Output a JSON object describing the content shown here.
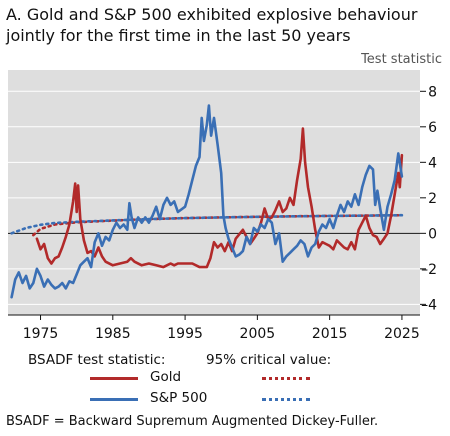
{
  "title": "A. Gold and S&P 500 exhibited explosive behaviour jointly for the first time in the last 50 years",
  "unit_label": "Test statistic",
  "legend": {
    "stat_header": "BSADF test statistic:",
    "crit_header": "95% critical value:",
    "gold_label": "Gold",
    "sp_label": "S&P 500"
  },
  "footnote": "BSADF = Backward Supremum Augmented Dickey-Fuller.",
  "colors": {
    "gold": "#b22a2a",
    "sp500": "#3a6fb5",
    "panel": "#dedede",
    "grid": "#ffffff"
  },
  "chart_data": {
    "type": "line",
    "x_range": [
      1970.5,
      2027.5
    ],
    "y_range": [
      -4.6,
      9.2
    ],
    "x_ticks": [
      1975,
      1985,
      1995,
      2005,
      2015,
      2025
    ],
    "y_ticks": [
      -4,
      -2,
      0,
      2,
      4,
      6,
      8
    ],
    "grid": true,
    "y_axis_side": "right",
    "series": [
      {
        "name": "Gold",
        "style": "solid",
        "points": [
          [
            1974.5,
            -0.3
          ],
          [
            1975,
            -0.9
          ],
          [
            1975.5,
            -0.6
          ],
          [
            1976,
            -1.4
          ],
          [
            1976.5,
            -1.7
          ],
          [
            1977,
            -1.4
          ],
          [
            1977.5,
            -1.3
          ],
          [
            1978,
            -0.8
          ],
          [
            1978.5,
            -0.2
          ],
          [
            1979,
            0.5
          ],
          [
            1979.5,
            1.8
          ],
          [
            1979.8,
            2.8
          ],
          [
            1980,
            1.2
          ],
          [
            1980.2,
            2.7
          ],
          [
            1980.5,
            0.8
          ],
          [
            1981,
            -0.4
          ],
          [
            1981.5,
            -1.1
          ],
          [
            1982,
            -1.0
          ],
          [
            1982.5,
            -1.3
          ],
          [
            1983,
            -0.8
          ],
          [
            1983.5,
            -1.3
          ],
          [
            1984,
            -1.6
          ],
          [
            1985,
            -1.8
          ],
          [
            1986,
            -1.7
          ],
          [
            1987,
            -1.6
          ],
          [
            1987.5,
            -1.4
          ],
          [
            1988,
            -1.6
          ],
          [
            1989,
            -1.8
          ],
          [
            1990,
            -1.7
          ],
          [
            1991,
            -1.8
          ],
          [
            1992,
            -1.9
          ],
          [
            1993,
            -1.7
          ],
          [
            1993.5,
            -1.8
          ],
          [
            1994,
            -1.7
          ],
          [
            1995,
            -1.7
          ],
          [
            1996,
            -1.7
          ],
          [
            1997,
            -1.9
          ],
          [
            1998,
            -1.9
          ],
          [
            1998.5,
            -1.4
          ],
          [
            1999,
            -0.5
          ],
          [
            1999.5,
            -0.8
          ],
          [
            2000,
            -0.6
          ],
          [
            2000.5,
            -1.0
          ],
          [
            2001,
            -0.5
          ],
          [
            2001.5,
            -1.0
          ],
          [
            2002,
            -0.3
          ],
          [
            2003,
            0.2
          ],
          [
            2003.5,
            -0.2
          ],
          [
            2004,
            -0.6
          ],
          [
            2004.5,
            -0.3
          ],
          [
            2005,
            0.0
          ],
          [
            2005.5,
            0.6
          ],
          [
            2006,
            1.4
          ],
          [
            2006.5,
            0.8
          ],
          [
            2007,
            0.9
          ],
          [
            2007.5,
            1.3
          ],
          [
            2008,
            1.8
          ],
          [
            2008.5,
            1.2
          ],
          [
            2009,
            1.4
          ],
          [
            2009.5,
            2.0
          ],
          [
            2010,
            1.6
          ],
          [
            2010.5,
            3.0
          ],
          [
            2011,
            4.2
          ],
          [
            2011.3,
            5.9
          ],
          [
            2011.6,
            4.0
          ],
          [
            2012,
            2.6
          ],
          [
            2012.5,
            1.5
          ],
          [
            2013,
            0.2
          ],
          [
            2013.5,
            -0.8
          ],
          [
            2014,
            -0.5
          ],
          [
            2014.5,
            -0.6
          ],
          [
            2015,
            -0.7
          ],
          [
            2015.5,
            -0.9
          ],
          [
            2016,
            -0.4
          ],
          [
            2016.5,
            -0.6
          ],
          [
            2017,
            -0.8
          ],
          [
            2017.5,
            -0.9
          ],
          [
            2018,
            -0.5
          ],
          [
            2018.5,
            -0.9
          ],
          [
            2019,
            0.2
          ],
          [
            2019.5,
            0.6
          ],
          [
            2020,
            1.0
          ],
          [
            2020.5,
            0.3
          ],
          [
            2021,
            -0.1
          ],
          [
            2021.5,
            -0.2
          ],
          [
            2022,
            -0.6
          ],
          [
            2022.5,
            -0.3
          ],
          [
            2023,
            0.0
          ],
          [
            2023.5,
            1.0
          ],
          [
            2024,
            2.2
          ],
          [
            2024.5,
            3.4
          ],
          [
            2024.7,
            2.6
          ],
          [
            2025,
            4.4
          ]
        ]
      },
      {
        "name": "S&P 500",
        "style": "solid",
        "points": [
          [
            1971,
            -3.6
          ],
          [
            1971.5,
            -2.6
          ],
          [
            1972,
            -2.2
          ],
          [
            1972.5,
            -2.8
          ],
          [
            1973,
            -2.4
          ],
          [
            1973.5,
            -3.1
          ],
          [
            1974,
            -2.8
          ],
          [
            1974.5,
            -2.0
          ],
          [
            1975,
            -2.4
          ],
          [
            1975.5,
            -3.0
          ],
          [
            1976,
            -2.6
          ],
          [
            1976.5,
            -2.9
          ],
          [
            1977,
            -3.1
          ],
          [
            1977.5,
            -3.0
          ],
          [
            1978,
            -2.8
          ],
          [
            1978.5,
            -3.1
          ],
          [
            1979,
            -2.7
          ],
          [
            1979.5,
            -2.8
          ],
          [
            1980,
            -2.3
          ],
          [
            1980.5,
            -1.8
          ],
          [
            1981,
            -1.6
          ],
          [
            1981.5,
            -1.4
          ],
          [
            1982,
            -1.9
          ],
          [
            1982.5,
            -0.5
          ],
          [
            1983,
            0.0
          ],
          [
            1983.5,
            -0.7
          ],
          [
            1984,
            -0.2
          ],
          [
            1984.5,
            -0.4
          ],
          [
            1985,
            0.2
          ],
          [
            1985.5,
            0.6
          ],
          [
            1986,
            0.3
          ],
          [
            1986.5,
            0.5
          ],
          [
            1987,
            0.2
          ],
          [
            1987.3,
            1.7
          ],
          [
            1987.6,
            0.9
          ],
          [
            1988,
            0.3
          ],
          [
            1988.5,
            0.9
          ],
          [
            1989,
            0.6
          ],
          [
            1989.5,
            0.9
          ],
          [
            1990,
            0.6
          ],
          [
            1990.5,
            1.0
          ],
          [
            1991,
            1.5
          ],
          [
            1991.5,
            0.8
          ],
          [
            1992,
            1.6
          ],
          [
            1992.5,
            2.0
          ],
          [
            1993,
            1.6
          ],
          [
            1993.5,
            1.8
          ],
          [
            1994,
            1.2
          ],
          [
            1995,
            1.5
          ],
          [
            1995.5,
            2.2
          ],
          [
            1996,
            3.0
          ],
          [
            1996.5,
            3.8
          ],
          [
            1997,
            4.3
          ],
          [
            1997.3,
            6.5
          ],
          [
            1997.6,
            5.2
          ],
          [
            1998,
            6.1
          ],
          [
            1998.3,
            7.2
          ],
          [
            1998.6,
            5.5
          ],
          [
            1999,
            6.5
          ],
          [
            1999.5,
            5.0
          ],
          [
            2000,
            3.4
          ],
          [
            2000.3,
            1.0
          ],
          [
            2000.6,
            0.3
          ],
          [
            2001,
            -0.3
          ],
          [
            2001.5,
            -0.8
          ],
          [
            2002,
            -1.3
          ],
          [
            2002.5,
            -1.2
          ],
          [
            2003,
            -1.0
          ],
          [
            2003.5,
            -0.2
          ],
          [
            2004,
            -0.6
          ],
          [
            2004.5,
            0.3
          ],
          [
            2005,
            0.1
          ],
          [
            2005.5,
            0.5
          ],
          [
            2006,
            0.3
          ],
          [
            2006.5,
            0.8
          ],
          [
            2007,
            0.6
          ],
          [
            2007.5,
            -0.6
          ],
          [
            2008,
            0.0
          ],
          [
            2008.5,
            -1.6
          ],
          [
            2009,
            -1.3
          ],
          [
            2009.5,
            -1.1
          ],
          [
            2010,
            -0.9
          ],
          [
            2010.5,
            -0.7
          ],
          [
            2011,
            -0.4
          ],
          [
            2011.5,
            -0.6
          ],
          [
            2012,
            -1.3
          ],
          [
            2012.5,
            -0.8
          ],
          [
            2013,
            -0.6
          ],
          [
            2013.5,
            0.1
          ],
          [
            2014,
            0.5
          ],
          [
            2014.5,
            0.3
          ],
          [
            2015,
            0.8
          ],
          [
            2015.5,
            0.3
          ],
          [
            2016,
            1.0
          ],
          [
            2016.5,
            1.6
          ],
          [
            2017,
            1.2
          ],
          [
            2017.5,
            1.8
          ],
          [
            2018,
            1.5
          ],
          [
            2018.5,
            2.2
          ],
          [
            2019,
            1.6
          ],
          [
            2019.5,
            2.6
          ],
          [
            2020,
            3.3
          ],
          [
            2020.5,
            3.8
          ],
          [
            2021,
            3.6
          ],
          [
            2021.3,
            1.6
          ],
          [
            2021.6,
            2.4
          ],
          [
            2022,
            1.4
          ],
          [
            2022.5,
            0.2
          ],
          [
            2023,
            1.5
          ],
          [
            2023.5,
            2.2
          ],
          [
            2024,
            3.0
          ],
          [
            2024.5,
            4.5
          ],
          [
            2025,
            3.2
          ]
        ]
      },
      {
        "name": "Gold",
        "style": "dotted",
        "points": [
          [
            1974,
            -0.1
          ],
          [
            1975,
            0.25
          ],
          [
            1977,
            0.5
          ],
          [
            1980,
            0.62
          ],
          [
            1985,
            0.72
          ],
          [
            1990,
            0.8
          ],
          [
            1995,
            0.86
          ],
          [
            2000,
            0.9
          ],
          [
            2005,
            0.93
          ],
          [
            2010,
            0.96
          ],
          [
            2015,
            0.98
          ],
          [
            2020,
            1.0
          ],
          [
            2025,
            1.02
          ]
        ]
      },
      {
        "name": "S&P 500",
        "style": "dotted",
        "points": [
          [
            1971,
            0.0
          ],
          [
            1973,
            0.3
          ],
          [
            1975,
            0.48
          ],
          [
            1977,
            0.58
          ],
          [
            1980,
            0.65
          ],
          [
            1985,
            0.73
          ],
          [
            1990,
            0.8
          ],
          [
            1995,
            0.86
          ],
          [
            2000,
            0.9
          ],
          [
            2005,
            0.93
          ],
          [
            2010,
            0.96
          ],
          [
            2015,
            0.98
          ],
          [
            2020,
            1.0
          ],
          [
            2025,
            1.02
          ]
        ]
      }
    ]
  }
}
